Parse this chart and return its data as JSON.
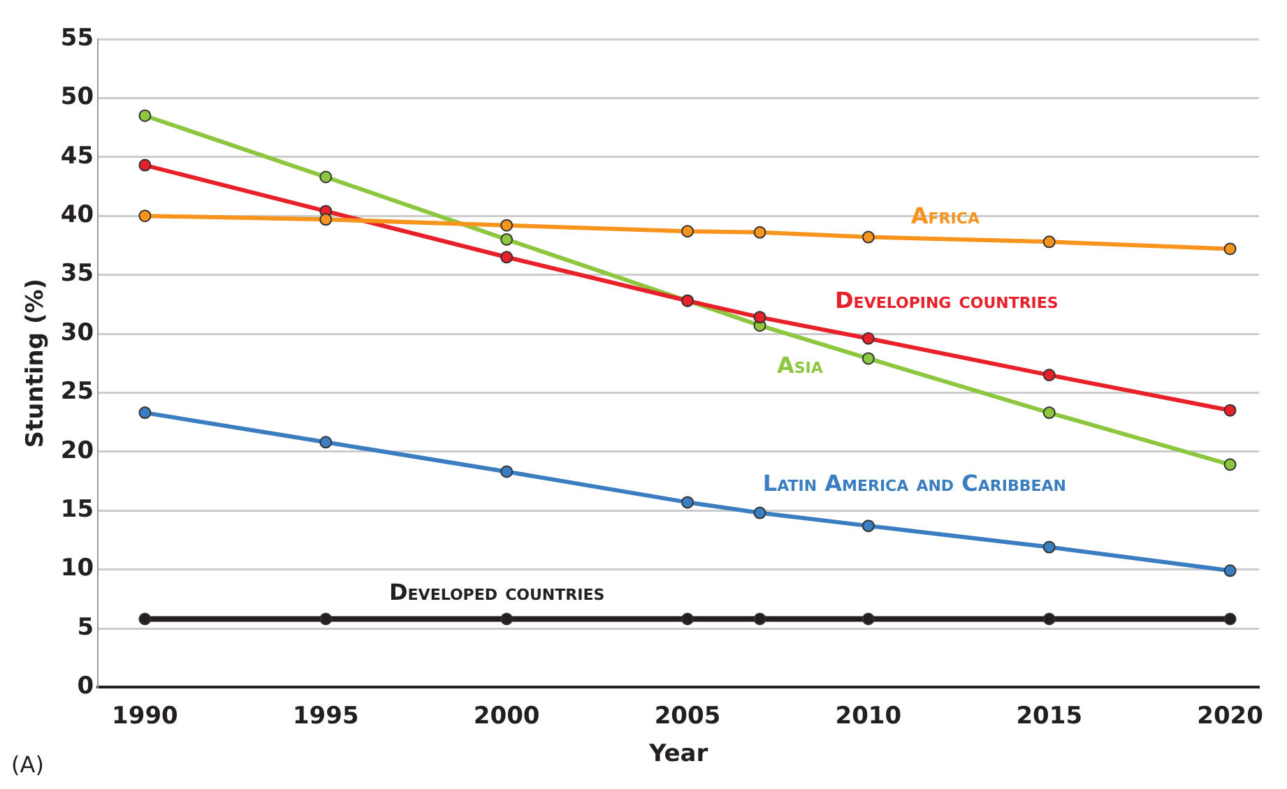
{
  "chart_data": {
    "type": "line",
    "xlabel": "Year",
    "ylabel": "Stunting (%)",
    "x": [
      1990,
      1995,
      2000,
      2005,
      2007,
      2010,
      2015,
      2020
    ],
    "xlim": [
      1988.7,
      2020.8
    ],
    "xticks": [
      1990,
      1995,
      2000,
      2005,
      2010,
      2015,
      2020
    ],
    "ylim": [
      0,
      55
    ],
    "yticks": [
      0,
      5,
      10,
      15,
      20,
      25,
      30,
      35,
      40,
      45,
      50,
      55
    ],
    "grid": "y",
    "legend": false,
    "marker": "circle",
    "line_style": "solid",
    "series": [
      {
        "name": "Africa",
        "color": "#f7941d",
        "values": [
          40.0,
          39.7,
          39.2,
          38.7,
          38.6,
          38.2,
          37.8,
          37.2
        ]
      },
      {
        "name": "Developing countries",
        "color": "#e8202a",
        "values": [
          44.3,
          40.4,
          36.5,
          32.8,
          31.4,
          29.6,
          26.5,
          23.5
        ]
      },
      {
        "name": "Asia",
        "color": "#8dc63f",
        "values": [
          48.5,
          43.3,
          38.0,
          32.8,
          30.7,
          27.9,
          23.3,
          18.9
        ]
      },
      {
        "name": "Latin America and Caribbean",
        "color": "#3a7dc0",
        "values": [
          23.3,
          20.8,
          18.3,
          15.7,
          14.8,
          13.7,
          11.9,
          9.9
        ]
      },
      {
        "name": "Developed countries",
        "color": "#231f20",
        "values": [
          5.8,
          5.8,
          5.8,
          5.8,
          5.8,
          5.8,
          5.8,
          5.8
        ]
      }
    ],
    "annotations": [
      "(A)"
    ]
  }
}
